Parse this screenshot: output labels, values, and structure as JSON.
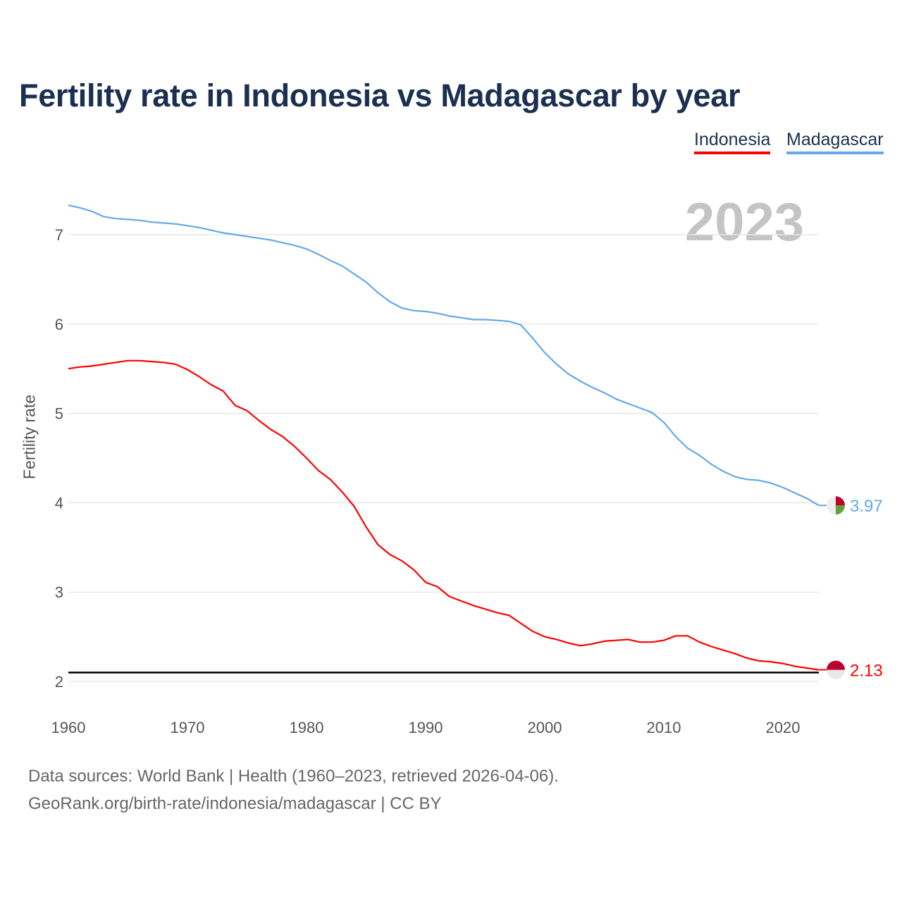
{
  "title": "Fertility rate in Indonesia vs Madagascar by year",
  "year_label": "2023",
  "footer": {
    "line1": "Data sources: World Bank | Health (1960–2023, retrieved 2026-04-06).",
    "line2": "GeoRank.org/birth-rate/indonesia/madagascar | CC BY"
  },
  "chart_data": {
    "type": "line",
    "title": "Fertility rate in Indonesia vs Madagascar by year",
    "xlabel": "",
    "ylabel": "Fertility rate",
    "xlim": [
      1960,
      2023
    ],
    "ylim": [
      2,
      7.4
    ],
    "xticks": [
      1960,
      1970,
      1980,
      1990,
      2000,
      2010,
      2020
    ],
    "yticks": [
      2,
      3,
      4,
      5,
      6,
      7
    ],
    "grid": true,
    "legend_position": "top-right",
    "reference_line": {
      "y": 2.1,
      "color": "#000000"
    },
    "x": [
      1960,
      1961,
      1962,
      1963,
      1964,
      1965,
      1966,
      1967,
      1968,
      1969,
      1970,
      1971,
      1972,
      1973,
      1974,
      1975,
      1976,
      1977,
      1978,
      1979,
      1980,
      1981,
      1982,
      1983,
      1984,
      1985,
      1986,
      1987,
      1988,
      1989,
      1990,
      1991,
      1992,
      1993,
      1994,
      1995,
      1996,
      1997,
      1998,
      1999,
      2000,
      2001,
      2002,
      2003,
      2004,
      2005,
      2006,
      2007,
      2008,
      2009,
      2010,
      2011,
      2012,
      2013,
      2014,
      2015,
      2016,
      2017,
      2018,
      2019,
      2020,
      2021,
      2022,
      2023
    ],
    "series": [
      {
        "name": "Indonesia",
        "color": "#ff0000",
        "end_label": "2.13",
        "values": [
          5.5,
          5.52,
          5.53,
          5.55,
          5.57,
          5.59,
          5.59,
          5.58,
          5.57,
          5.55,
          5.49,
          5.41,
          5.32,
          5.25,
          5.09,
          5.03,
          4.92,
          4.82,
          4.74,
          4.63,
          4.5,
          4.36,
          4.26,
          4.12,
          3.96,
          3.73,
          3.53,
          3.42,
          3.35,
          3.25,
          3.11,
          3.06,
          2.95,
          2.9,
          2.85,
          2.81,
          2.77,
          2.74,
          2.65,
          2.56,
          2.5,
          2.47,
          2.43,
          2.4,
          2.42,
          2.45,
          2.46,
          2.47,
          2.44,
          2.44,
          2.46,
          2.51,
          2.51,
          2.44,
          2.39,
          2.35,
          2.31,
          2.26,
          2.23,
          2.22,
          2.2,
          2.17,
          2.15,
          2.13
        ]
      },
      {
        "name": "Madagascar",
        "color": "#66a8ea",
        "end_label": "3.97",
        "values": [
          7.33,
          7.3,
          7.26,
          7.2,
          7.18,
          7.17,
          7.16,
          7.14,
          7.13,
          7.12,
          7.1,
          7.08,
          7.05,
          7.02,
          7.0,
          6.98,
          6.96,
          6.94,
          6.91,
          6.88,
          6.84,
          6.78,
          6.71,
          6.65,
          6.56,
          6.47,
          6.35,
          6.25,
          6.18,
          6.15,
          6.14,
          6.12,
          6.09,
          6.07,
          6.05,
          6.05,
          6.04,
          6.03,
          5.99,
          5.84,
          5.68,
          5.55,
          5.44,
          5.36,
          5.29,
          5.23,
          5.16,
          5.11,
          5.06,
          5.01,
          4.9,
          4.74,
          4.61,
          4.53,
          4.43,
          4.35,
          4.29,
          4.26,
          4.25,
          4.22,
          4.17,
          4.11,
          4.05,
          3.97
        ]
      }
    ]
  }
}
